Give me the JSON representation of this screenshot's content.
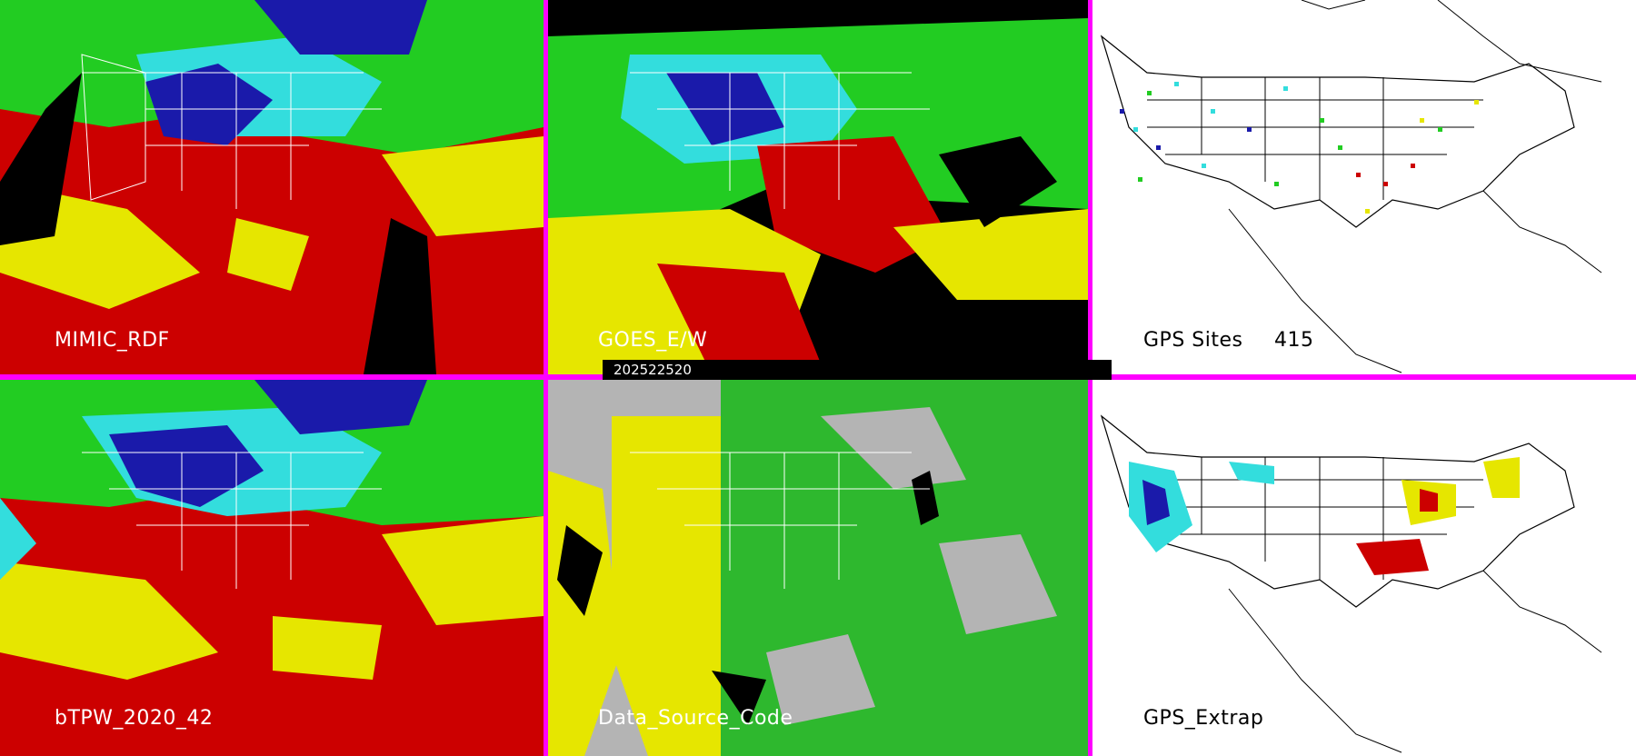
{
  "panels": [
    {
      "id": "mimic",
      "label": "MIMIC_RDF"
    },
    {
      "id": "goes",
      "label": "GOES_E/W"
    },
    {
      "id": "gps-sites",
      "label": "GPS Sites",
      "count": "415"
    },
    {
      "id": "btpw",
      "label": "bTPW_2020_42"
    },
    {
      "id": "datasource",
      "label": "Data_Source_Code"
    },
    {
      "id": "gps-extrap",
      "label": "GPS_Extrap"
    }
  ],
  "timestamp": "202522520",
  "colors": {
    "divider": "#ff00ff",
    "red": "#cc0000",
    "yellow": "#e6e600",
    "green": "#22cc22",
    "cyan": "#33dddd",
    "blue": "#1a1aaa",
    "gray": "#b4b4b4",
    "dark-green": "#2eb82e"
  }
}
